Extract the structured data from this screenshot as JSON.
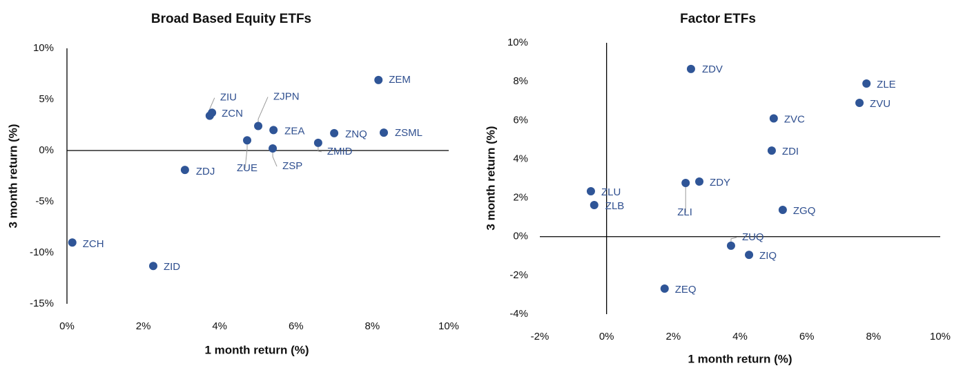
{
  "chart_data": [
    {
      "type": "scatter",
      "title": "Broad Based Equity ETFs",
      "x_label": "1 month return (%)",
      "y_label": "3 month return (%)",
      "color": "#2f5597",
      "labels": [
        "ZEM",
        "ZIU",
        "ZCN",
        "ZJPN",
        "ZEA",
        "ZNQ",
        "ZSML",
        "ZUE",
        "ZSP",
        "ZMID",
        "ZDJ",
        "ZCH",
        "ZID"
      ],
      "x": [
        8.16,
        3.74,
        3.8,
        5.01,
        5.41,
        7.0,
        8.3,
        4.72,
        5.39,
        6.58,
        3.09,
        0.14,
        2.26
      ],
      "y": [
        6.9,
        3.4,
        3.7,
        2.4,
        2.0,
        1.7,
        1.75,
        1.0,
        0.2,
        0.75,
        -1.9,
        -9.0,
        -11.3
      ],
      "xlim": [
        0,
        10
      ],
      "ylim": [
        -15,
        10
      ],
      "xticks": [
        {
          "value": 0,
          "label": "0%"
        },
        {
          "value": 2,
          "label": "2%"
        },
        {
          "value": 4,
          "label": "4%"
        },
        {
          "value": 6,
          "label": "6%"
        },
        {
          "value": 8,
          "label": "8%"
        },
        {
          "value": 10,
          "label": "10%"
        }
      ],
      "yticks": [
        {
          "value": -15,
          "label": "-15%"
        },
        {
          "value": -10,
          "label": "-10%"
        },
        {
          "value": -5,
          "label": "-5%"
        },
        {
          "value": 0,
          "label": "0%"
        },
        {
          "value": 5,
          "label": "5%"
        },
        {
          "value": 10,
          "label": "10%"
        }
      ]
    },
    {
      "type": "scatter",
      "title": "Factor ETFs",
      "x_label": "1 month return (%)",
      "y_label": "3 month return (%)",
      "color": "#2f5597",
      "labels": [
        "ZDV",
        "ZLE",
        "ZVU",
        "ZVC",
        "ZDI",
        "ZDY",
        "ZLI",
        "ZLU",
        "ZLB",
        "ZGQ",
        "ZUQ",
        "ZIQ",
        "ZEQ"
      ],
      "x": [
        2.53,
        7.79,
        7.58,
        5.01,
        4.95,
        2.78,
        2.37,
        -0.47,
        -0.37,
        5.28,
        3.73,
        4.27,
        1.74
      ],
      "y": [
        8.65,
        7.9,
        6.9,
        6.1,
        4.44,
        2.84,
        2.77,
        2.34,
        1.63,
        1.38,
        -0.47,
        -0.94,
        -2.68
      ],
      "xlim": [
        -2,
        10
      ],
      "ylim": [
        -4,
        10
      ],
      "xticks": [
        {
          "value": -2,
          "label": "-2%"
        },
        {
          "value": 0,
          "label": "0%"
        },
        {
          "value": 2,
          "label": "2%"
        },
        {
          "value": 4,
          "label": "4%"
        },
        {
          "value": 6,
          "label": "6%"
        },
        {
          "value": 8,
          "label": "8%"
        },
        {
          "value": 10,
          "label": "10%"
        }
      ],
      "yticks": [
        {
          "value": -4,
          "label": "-4%"
        },
        {
          "value": -2,
          "label": "-2%"
        },
        {
          "value": 0,
          "label": "0%"
        },
        {
          "value": 2,
          "label": "2%"
        },
        {
          "value": 4,
          "label": "4%"
        },
        {
          "value": 6,
          "label": "6%"
        },
        {
          "value": 8,
          "label": "8%"
        },
        {
          "value": 10,
          "label": "10%"
        }
      ]
    }
  ]
}
